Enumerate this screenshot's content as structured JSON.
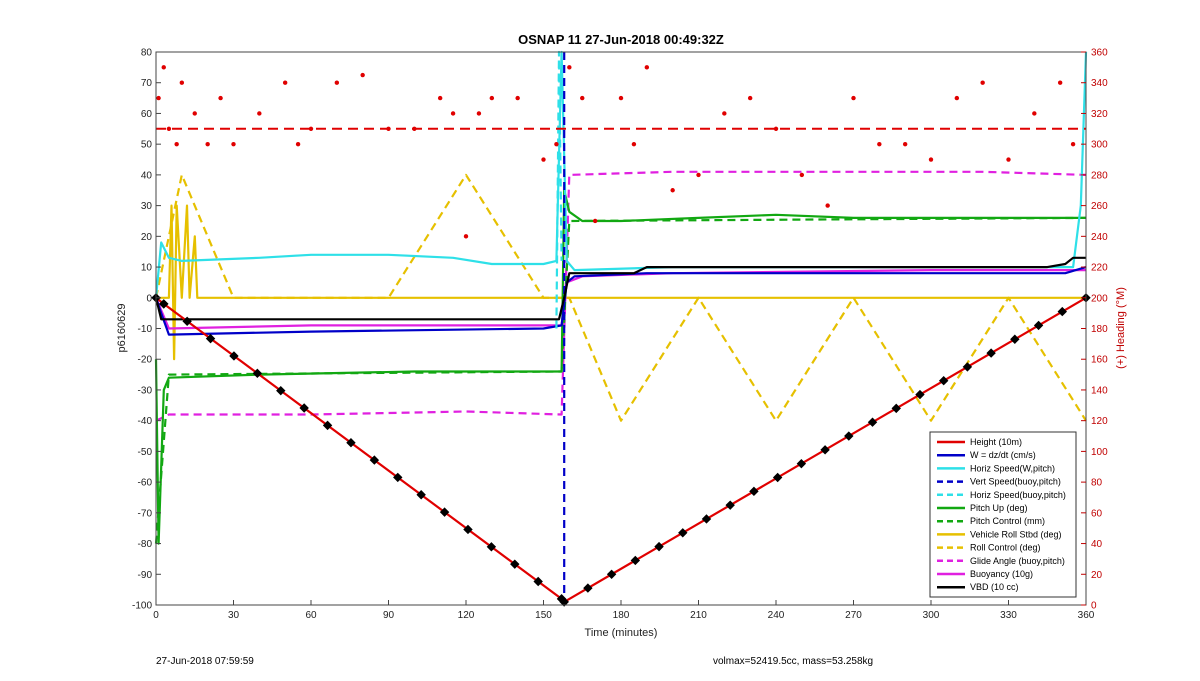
{
  "chart_data": {
    "type": "line",
    "title": "OSNAP 11 27-Jun-2018 00:49:32Z",
    "xlabel": "Time (minutes)",
    "ylabel": "p6160629",
    "ylabel_right": "(+) Heading (°M)",
    "xlim": [
      0,
      360
    ],
    "ylim": [
      -100,
      80
    ],
    "ylim_right": [
      0,
      360
    ],
    "x_ticks": [
      0,
      30,
      60,
      90,
      120,
      150,
      180,
      210,
      240,
      270,
      300,
      330,
      360
    ],
    "y_ticks": [
      80,
      70,
      60,
      50,
      40,
      30,
      20,
      10,
      0,
      -10,
      -20,
      -30,
      -40,
      -50,
      -60,
      -70,
      -80,
      -90,
      -100
    ],
    "y_right_ticks": [
      360,
      340,
      320,
      300,
      280,
      260,
      240,
      220,
      200,
      180,
      160,
      140,
      120,
      100,
      80,
      60,
      40,
      20,
      0
    ],
    "grid": false,
    "legend_position": "bottom-right",
    "series": [
      {
        "name": "Height (10m)",
        "color": "#e00000",
        "style": "solid",
        "x": [
          0,
          3,
          157,
          158,
          360
        ],
        "y": [
          0,
          -2,
          -98,
          -99,
          0
        ]
      },
      {
        "name": "W = dz/dt (cm/s)",
        "color": "#0000c8",
        "style": "solid",
        "x": [
          0,
          2,
          5,
          60,
          150,
          157,
          159,
          162,
          190,
          300,
          352,
          360
        ],
        "y": [
          0,
          -5,
          -12,
          -11,
          -10,
          -9,
          5,
          7,
          8,
          8,
          8,
          10
        ]
      },
      {
        "name": "Horiz Speed(W,pitch)",
        "color": "#2ee0e8",
        "style": "solid",
        "x": [
          0,
          2,
          5,
          10,
          40,
          60,
          90,
          115,
          130,
          150,
          155,
          157,
          159,
          162,
          200,
          300,
          355,
          358,
          360
        ],
        "y": [
          0,
          18,
          13,
          12,
          13,
          14,
          14,
          13,
          11,
          11,
          12,
          80,
          12,
          9,
          10,
          10,
          10,
          30,
          80
        ]
      },
      {
        "name": "Vert Speed(buoy,pitch)",
        "color": "#0000c8",
        "style": "dashed",
        "x": [
          158,
          158,
          158
        ],
        "y": [
          80,
          0,
          -100
        ]
      },
      {
        "name": "Horiz Speed(buoy,pitch)",
        "color": "#2ee0e8",
        "style": "dashed",
        "x": [
          155,
          156,
          157
        ],
        "y": [
          -10,
          80,
          12
        ]
      },
      {
        "name": "Pitch Up (deg)",
        "color": "#12a812",
        "style": "solid",
        "x": [
          0,
          1,
          3,
          5,
          40,
          100,
          150,
          157,
          158,
          160,
          165,
          180,
          210,
          240,
          270,
          300,
          330,
          360
        ],
        "y": [
          -20,
          -80,
          -30,
          -26,
          -25,
          -24,
          -24,
          -24,
          35,
          28,
          25,
          25,
          26,
          27,
          26,
          26,
          26,
          26
        ]
      },
      {
        "name": "Pitch Control (mm)",
        "color": "#12a812",
        "style": "dashed",
        "x": [
          0,
          5,
          157,
          160,
          360
        ],
        "y": [
          -80,
          -25,
          -24,
          25,
          26
        ]
      },
      {
        "name": "Vehicle Roll Stbd (deg)",
        "color": "#e6c000",
        "style": "solid",
        "x": [
          0,
          5,
          6,
          7,
          8,
          10,
          12,
          13,
          15,
          16,
          20,
          157,
          160,
          165,
          200,
          230,
          260,
          290,
          320,
          350,
          360
        ],
        "y": [
          0,
          0,
          30,
          -20,
          30,
          0,
          30,
          0,
          20,
          0,
          0,
          0,
          0,
          0,
          0,
          0,
          0,
          0,
          0,
          0,
          0
        ]
      },
      {
        "name": "Roll Control (deg)",
        "color": "#e6c000",
        "style": "dashed",
        "x": [
          0,
          10,
          30,
          60,
          90,
          120,
          150,
          160,
          180,
          210,
          240,
          270,
          300,
          330,
          360
        ],
        "y": [
          0,
          40,
          0,
          0,
          0,
          40,
          0,
          0,
          -40,
          0,
          -40,
          0,
          -40,
          0,
          -40
        ]
      },
      {
        "name": "Glide Angle (buoy,pitch)",
        "color": "#e020e0",
        "style": "dashed",
        "x": [
          0,
          5,
          60,
          120,
          157,
          160,
          200,
          260,
          320,
          360
        ],
        "y": [
          -40,
          -38,
          -38,
          -37,
          -38,
          40,
          41,
          41,
          41,
          40
        ]
      },
      {
        "name": "Buoyancy (10g)",
        "color": "#e020e0",
        "style": "solid",
        "x": [
          0,
          5,
          60,
          150,
          157,
          159,
          165,
          200,
          300,
          360
        ],
        "y": [
          0,
          -10,
          -9,
          -9,
          -9,
          5,
          7,
          8,
          9,
          9
        ]
      },
      {
        "name": "VBD (10 cc)",
        "color": "#000000",
        "style": "solid",
        "x": [
          0,
          2,
          4,
          156,
          158,
          160,
          185,
          190,
          300,
          345,
          352,
          355,
          360
        ],
        "y": [
          0,
          -7,
          -7,
          -7,
          0,
          8,
          8,
          10,
          10,
          10,
          11,
          13,
          13
        ]
      }
    ],
    "heading_scatter": {
      "name": "Heading (°M)",
      "color": "#e00000",
      "axis": "right",
      "mean_line": 310,
      "x": [
        1,
        3,
        5,
        8,
        10,
        15,
        20,
        25,
        30,
        40,
        50,
        55,
        60,
        70,
        80,
        90,
        100,
        110,
        115,
        120,
        125,
        130,
        140,
        150,
        155,
        160,
        165,
        170,
        180,
        185,
        190,
        200,
        210,
        220,
        230,
        240,
        250,
        260,
        270,
        280,
        290,
        300,
        310,
        320,
        330,
        340,
        350,
        355
      ],
      "y": [
        330,
        350,
        310,
        300,
        340,
        320,
        300,
        330,
        300,
        320,
        340,
        300,
        310,
        340,
        345,
        310,
        310,
        330,
        320,
        240,
        320,
        330,
        330,
        290,
        300,
        350,
        330,
        250,
        330,
        300,
        350,
        270,
        280,
        320,
        330,
        310,
        280,
        260,
        330,
        300,
        300,
        290,
        330,
        340,
        290,
        320,
        340,
        300
      ]
    }
  },
  "legend": {
    "items": [
      {
        "label": "Height (10m)",
        "color": "#e00000",
        "style": "solid"
      },
      {
        "label": "W = dz/dt (cm/s)",
        "color": "#0000c8",
        "style": "solid"
      },
      {
        "label": "Horiz Speed(W,pitch)",
        "color": "#2ee0e8",
        "style": "solid"
      },
      {
        "label": "Vert Speed(buoy,pitch)",
        "color": "#0000c8",
        "style": "dashed"
      },
      {
        "label": "Horiz Speed(buoy,pitch)",
        "color": "#2ee0e8",
        "style": "dashed"
      },
      {
        "label": "Pitch Up (deg)",
        "color": "#12a812",
        "style": "solid"
      },
      {
        "label": "Pitch Control (mm)",
        "color": "#12a812",
        "style": "dashed"
      },
      {
        "label": "Vehicle Roll Stbd (deg)",
        "color": "#e6c000",
        "style": "solid"
      },
      {
        "label": "Roll Control (deg)",
        "color": "#e6c000",
        "style": "dashed"
      },
      {
        "label": "Glide Angle (buoy,pitch)",
        "color": "#e020e0",
        "style": "dashed"
      },
      {
        "label": "Buoyancy (10g)",
        "color": "#e020e0",
        "style": "solid"
      },
      {
        "label": "VBD (10 cc)",
        "color": "#000000",
        "style": "solid"
      }
    ]
  },
  "footer": {
    "left": "27-Jun-2018 07:59:59",
    "right": "volmax=52419.5cc, mass=53.258kg"
  }
}
